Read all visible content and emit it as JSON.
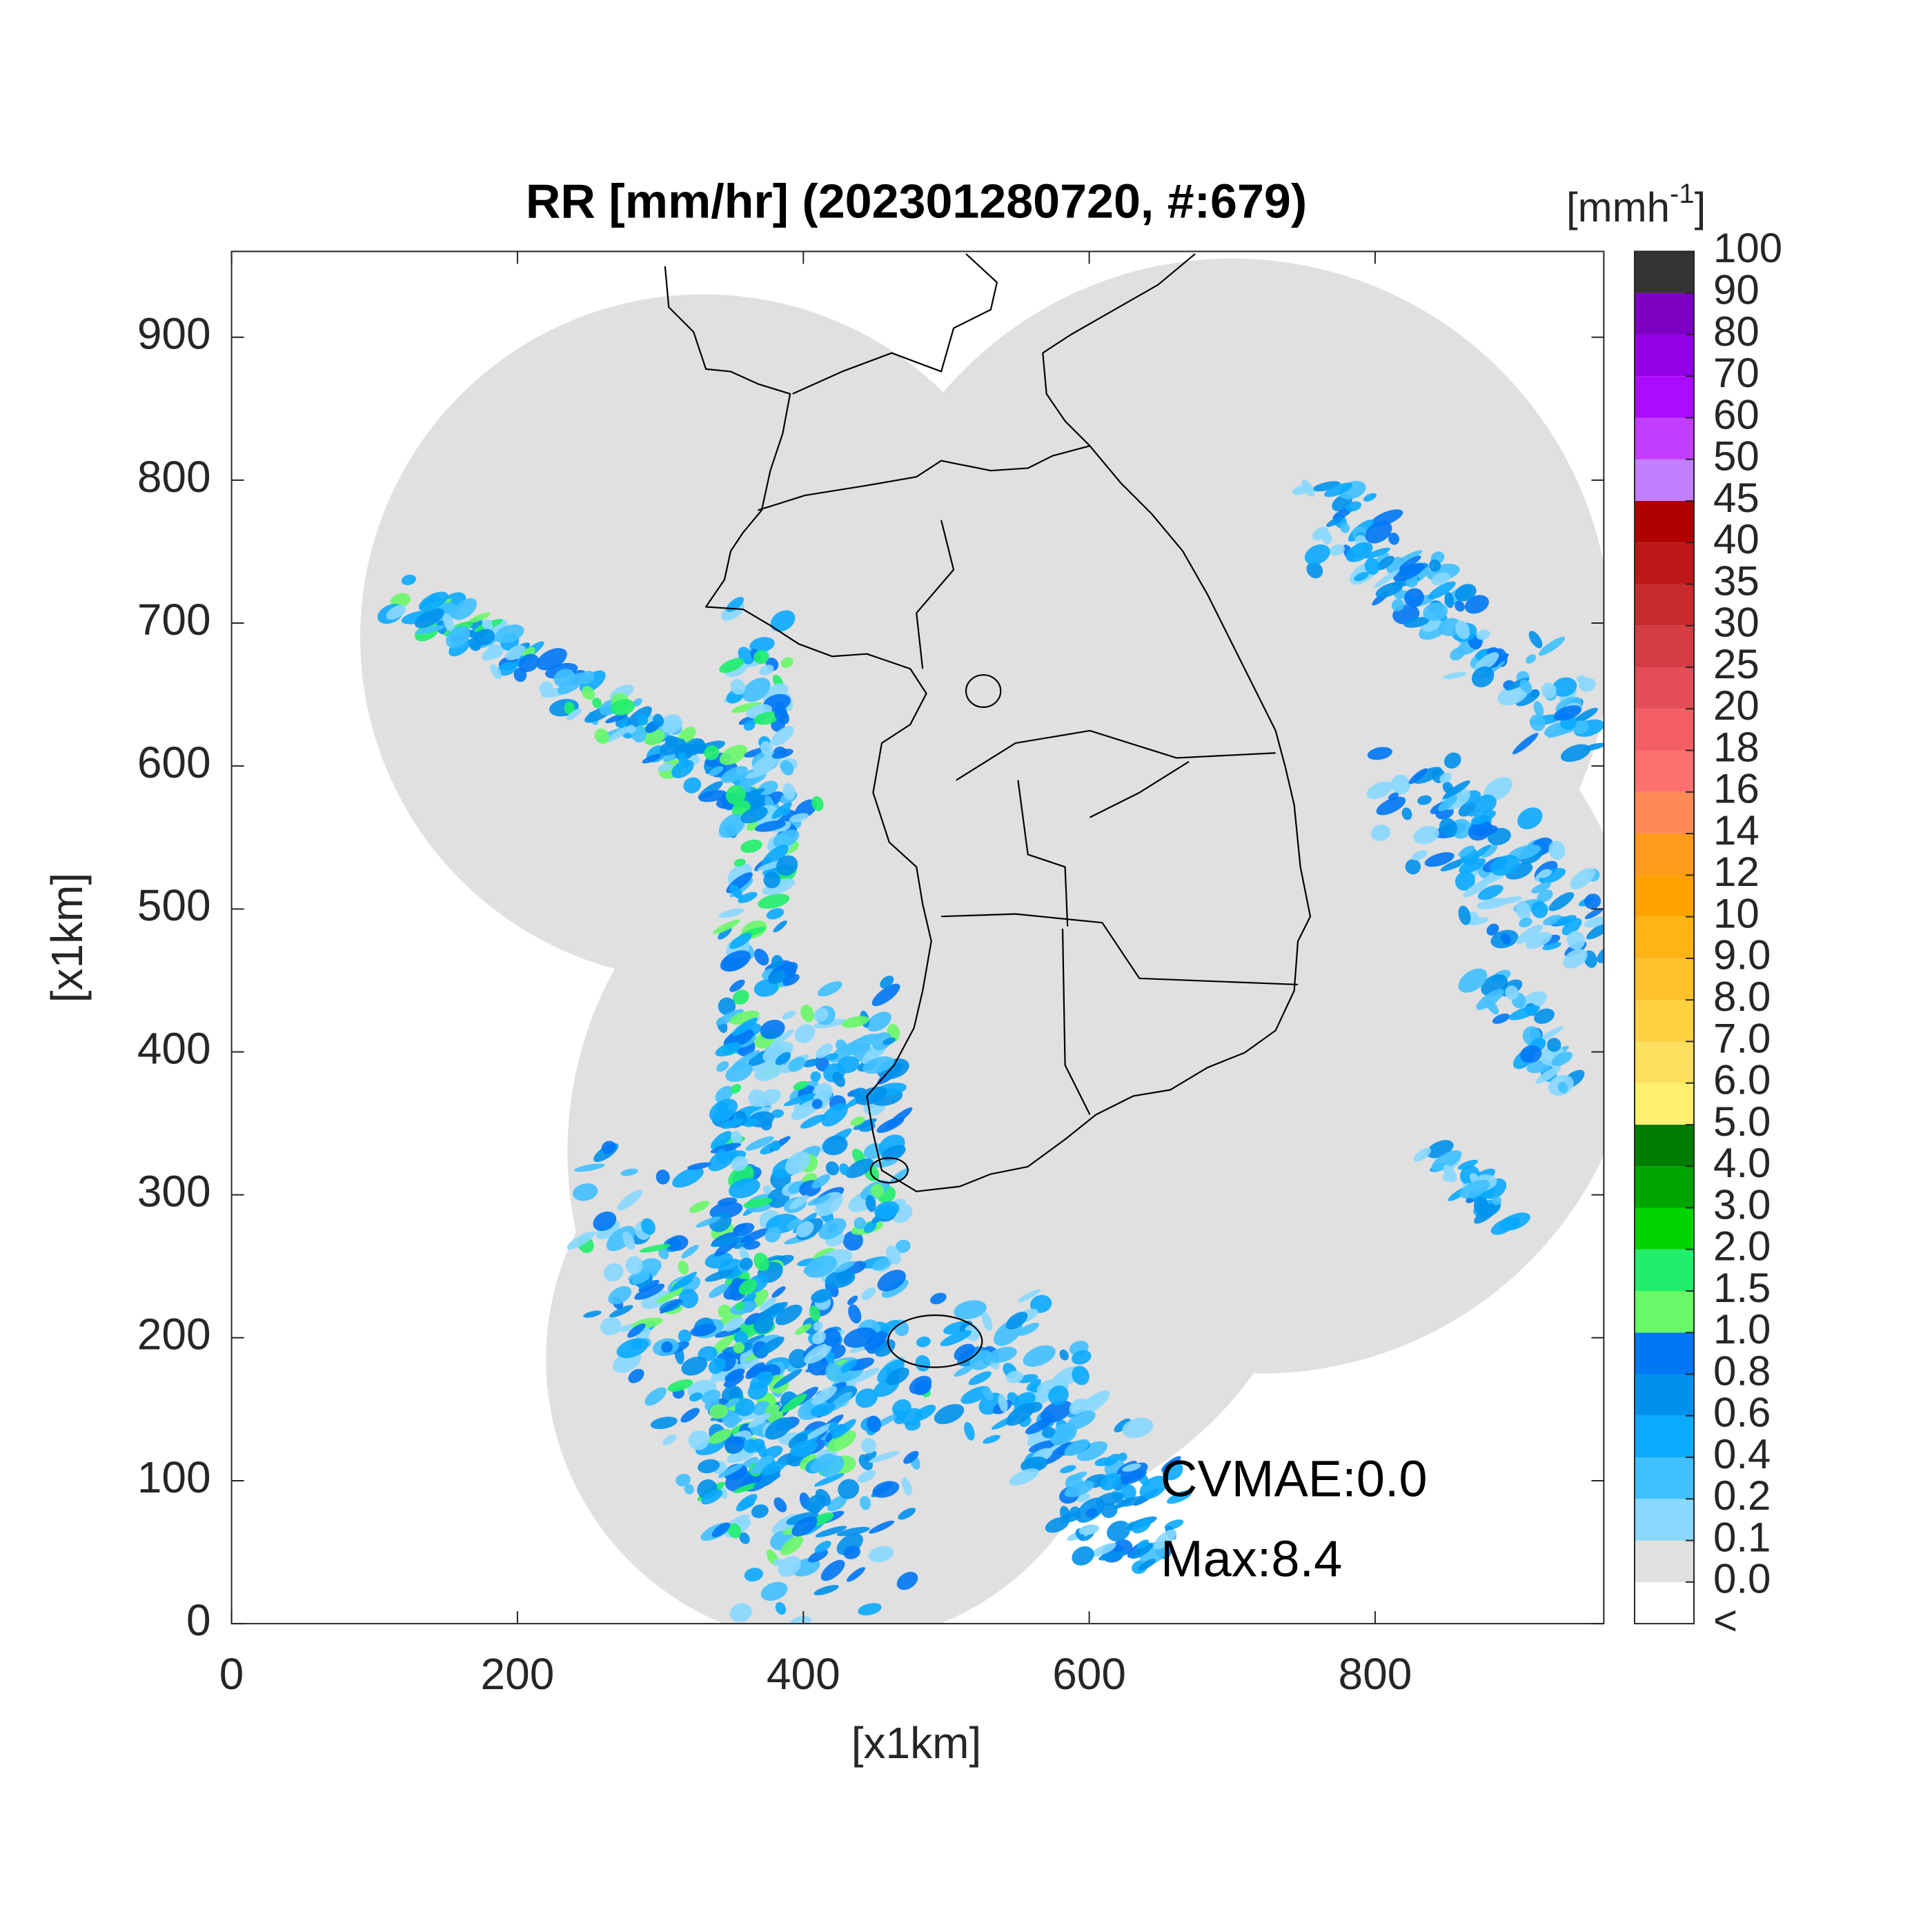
{
  "chart_data": {
    "type": "heatmap",
    "title": "RR [mm/hr] (202301280720, #:679)",
    "x_label": "[x1km]",
    "y_label": "[x1km]",
    "xlim": [
      0,
      960
    ],
    "ylim": [
      0,
      960
    ],
    "xticks": [
      0,
      200,
      400,
      600,
      800
    ],
    "yticks": [
      0,
      100,
      200,
      300,
      400,
      500,
      600,
      700,
      800,
      900
    ],
    "annotations": [
      "CVMAE:0.0",
      "Max:8.4"
    ],
    "colorbar": {
      "unit": [
        "[mmh",
        "-1",
        "]"
      ],
      "under_label": "<",
      "under_color": "#ffffff",
      "ticks": [
        {
          "value": 0,
          "label": "0.0"
        },
        0.1,
        0.2,
        0.4,
        0.6,
        0.8,
        {
          "value": 1,
          "label": "1.0"
        },
        1.5,
        {
          "value": 2,
          "label": "2.0"
        },
        {
          "value": 3,
          "label": "3.0"
        },
        {
          "value": 4,
          "label": "4.0"
        },
        {
          "value": 5,
          "label": "5.0"
        },
        {
          "value": 6,
          "label": "6.0"
        },
        {
          "value": 7,
          "label": "7.0"
        },
        {
          "value": 8,
          "label": "8.0"
        },
        {
          "value": 9,
          "label": "9.0"
        },
        10,
        12,
        14,
        16,
        18,
        20,
        25,
        30,
        35,
        40,
        45,
        50,
        60,
        70,
        80,
        90,
        100
      ],
      "colors": [
        "#e0e0e0",
        "#88d8ff",
        "#40c0ff",
        "#0aaaff",
        "#0091ec",
        "#0077f5",
        "#68f868",
        "#20ee6c",
        "#00d400",
        "#00a400",
        "#007c00",
        "#fff070",
        "#ffdf60",
        "#ffd040",
        "#ffc22a",
        "#ffb314",
        "#ffa200",
        "#ff9b1a",
        "#ff8a55",
        "#ff7070",
        "#f45f64",
        "#e34e58",
        "#d53d45",
        "#c82b2b",
        "#bc1818",
        "#b00000",
        "#c27fff",
        "#c23dff",
        "#ad0bff",
        "#9200e6",
        "#7e00c2",
        "#333333"
      ]
    }
  }
}
